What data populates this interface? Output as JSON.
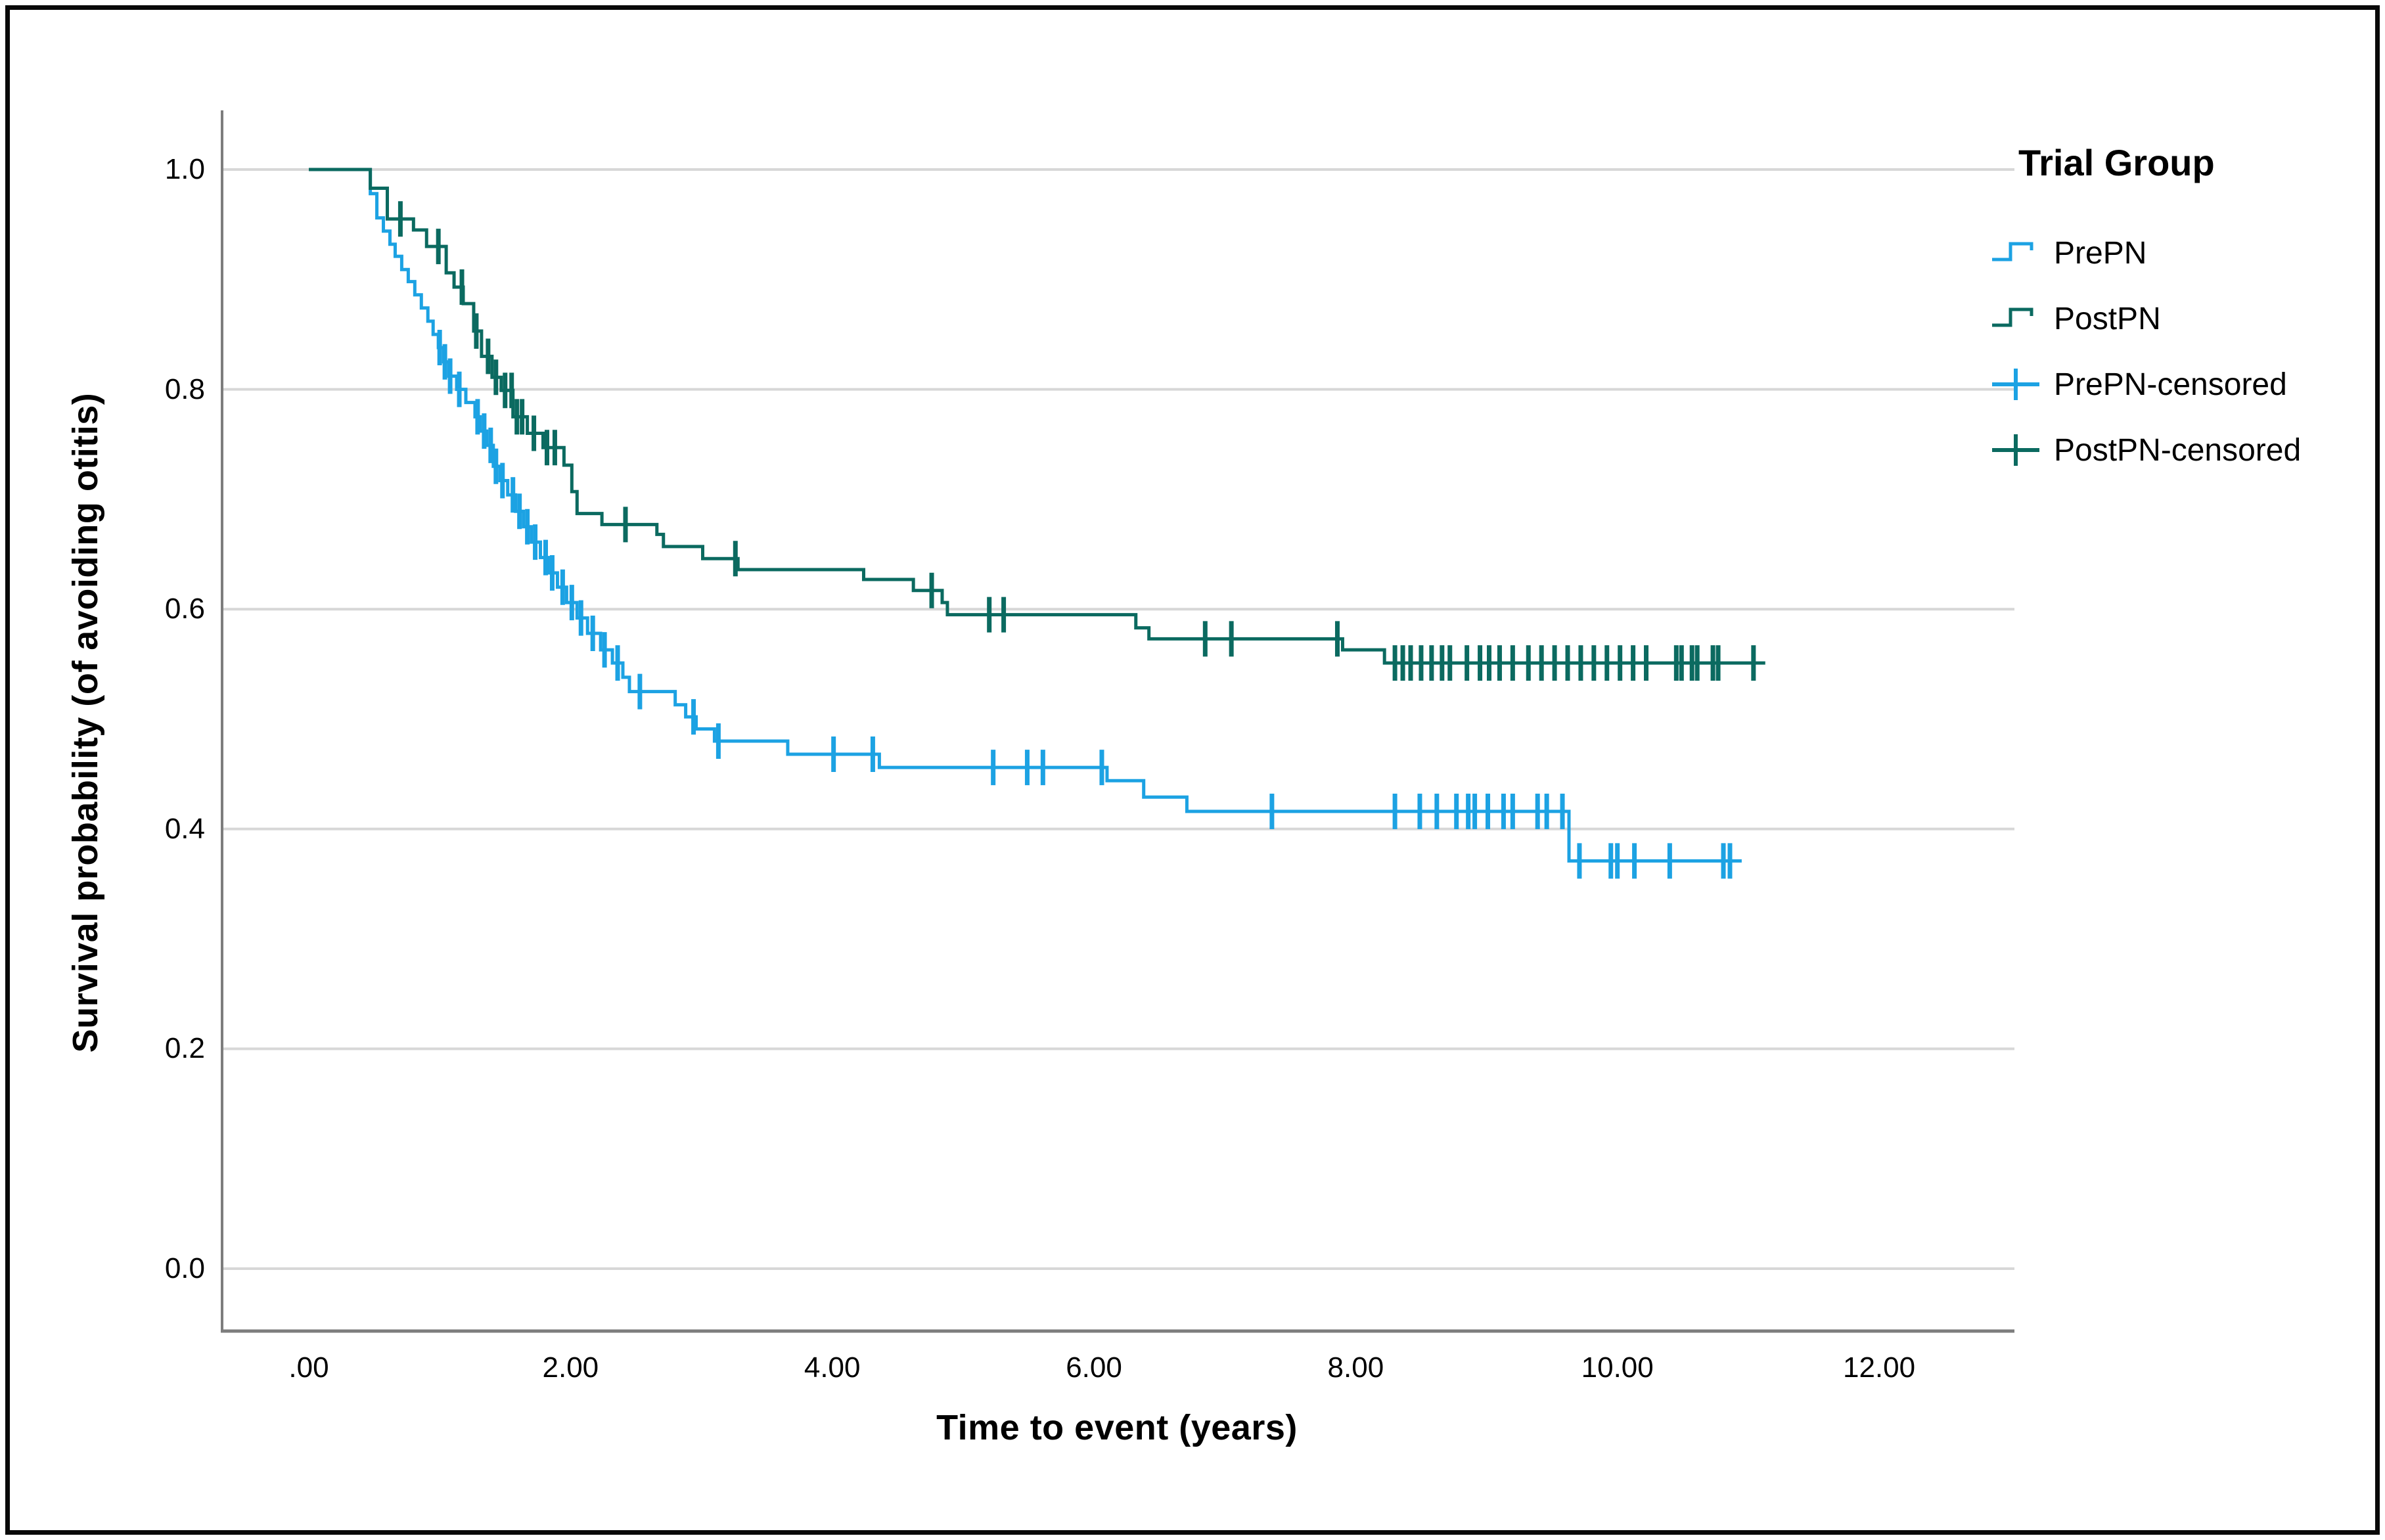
{
  "figure": {
    "background": "#ffffff",
    "border_color": "#0a0a0a"
  },
  "chart_data": {
    "type": "line",
    "subtype": "kaplan-meier-step",
    "title": "",
    "xlabel": "Time to event (years)",
    "ylabel": "Survival probability (of avoiding otitis)",
    "x_tick_labels": [
      ".00",
      "2.00",
      "4.00",
      "6.00",
      "8.00",
      "10.00",
      "12.00"
    ],
    "x_tick_values": [
      0,
      2,
      4,
      6,
      8,
      10,
      12
    ],
    "y_tick_labels": [
      "0.0",
      "0.2",
      "0.4",
      "0.6",
      "0.8",
      "1.0"
    ],
    "y_tick_values": [
      0.0,
      0.2,
      0.4,
      0.6,
      0.8,
      1.0
    ],
    "xlim": [
      -0.66,
      13.0
    ],
    "ylim": [
      -0.06,
      1.04
    ],
    "grid": "horizontal",
    "grid_color": "#d7d7d7",
    "axis_color": "#7d7d7d",
    "legend_position": "right",
    "legend": {
      "title": "Trial Group",
      "entries": [
        {
          "label": "PrePN",
          "series": "PrePN",
          "marker": "step-line"
        },
        {
          "label": "PostPN",
          "series": "PostPN",
          "marker": "step-line"
        },
        {
          "label": "PrePN-censored",
          "series": "PrePN",
          "marker": "censor-cross"
        },
        {
          "label": "PostPN-censored",
          "series": "PostPN",
          "marker": "censor-cross"
        }
      ]
    },
    "series": [
      {
        "name": "PrePN",
        "color": "#1ca2e3",
        "end_time": 10.95,
        "steps": [
          [
            0,
            1.0
          ],
          [
            0.47,
            0.978
          ],
          [
            0.52,
            0.956
          ],
          [
            0.57,
            0.944
          ],
          [
            0.62,
            0.932
          ],
          [
            0.66,
            0.921
          ],
          [
            0.71,
            0.909
          ],
          [
            0.76,
            0.898
          ],
          [
            0.81,
            0.886
          ],
          [
            0.86,
            0.874
          ],
          [
            0.91,
            0.862
          ],
          [
            0.95,
            0.85
          ],
          [
            0.99,
            0.838
          ],
          [
            1.03,
            0.825
          ],
          [
            1.07,
            0.812
          ],
          [
            1.13,
            0.8
          ],
          [
            1.2,
            0.788
          ],
          [
            1.27,
            0.775
          ],
          [
            1.31,
            0.762
          ],
          [
            1.36,
            0.749
          ],
          [
            1.41,
            0.73
          ],
          [
            1.46,
            0.717
          ],
          [
            1.52,
            0.704
          ],
          [
            1.58,
            0.689
          ],
          [
            1.64,
            0.675
          ],
          [
            1.7,
            0.661
          ],
          [
            1.77,
            0.647
          ],
          [
            1.83,
            0.633
          ],
          [
            1.9,
            0.62
          ],
          [
            1.97,
            0.606
          ],
          [
            2.05,
            0.592
          ],
          [
            2.13,
            0.578
          ],
          [
            2.23,
            0.563
          ],
          [
            2.32,
            0.551
          ],
          [
            2.4,
            0.538
          ],
          [
            2.45,
            0.525
          ],
          [
            2.8,
            0.513
          ],
          [
            2.88,
            0.502
          ],
          [
            2.96,
            0.491
          ],
          [
            3.1,
            0.48
          ],
          [
            3.66,
            0.468
          ],
          [
            4.36,
            0.456
          ],
          [
            6.1,
            0.444
          ],
          [
            6.38,
            0.429
          ],
          [
            6.71,
            0.416
          ],
          [
            9.63,
            0.371
          ]
        ],
        "censor_times": [
          1.0,
          1.04,
          1.08,
          1.15,
          1.29,
          1.34,
          1.39,
          1.43,
          1.48,
          1.56,
          1.61,
          1.67,
          1.73,
          1.81,
          1.86,
          1.94,
          2.01,
          2.08,
          2.17,
          2.26,
          2.36,
          2.53,
          2.94,
          3.13,
          4.01,
          4.31,
          5.23,
          5.49,
          5.61,
          6.06,
          7.36,
          8.3,
          8.49,
          8.62,
          8.77,
          8.86,
          8.91,
          9.01,
          9.13,
          9.2,
          9.39,
          9.46,
          9.58,
          9.71,
          9.95,
          10.0,
          10.13,
          10.4,
          10.81,
          10.86
        ]
      },
      {
        "name": "PostPN",
        "color": "#0b6a60",
        "end_time": 11.13,
        "steps": [
          [
            0,
            1.0
          ],
          [
            0.47,
            0.983
          ],
          [
            0.6,
            0.955
          ],
          [
            0.8,
            0.945
          ],
          [
            0.9,
            0.93
          ],
          [
            1.05,
            0.906
          ],
          [
            1.11,
            0.893
          ],
          [
            1.18,
            0.878
          ],
          [
            1.26,
            0.853
          ],
          [
            1.32,
            0.83
          ],
          [
            1.4,
            0.811
          ],
          [
            1.47,
            0.799
          ],
          [
            1.56,
            0.775
          ],
          [
            1.67,
            0.76
          ],
          [
            1.79,
            0.747
          ],
          [
            1.95,
            0.731
          ],
          [
            2.01,
            0.707
          ],
          [
            2.05,
            0.687
          ],
          [
            2.24,
            0.677
          ],
          [
            2.66,
            0.668
          ],
          [
            2.71,
            0.657
          ],
          [
            3.01,
            0.646
          ],
          [
            3.28,
            0.636
          ],
          [
            4.24,
            0.627
          ],
          [
            4.62,
            0.617
          ],
          [
            4.84,
            0.606
          ],
          [
            4.88,
            0.595
          ],
          [
            6.32,
            0.583
          ],
          [
            6.42,
            0.573
          ],
          [
            7.9,
            0.563
          ],
          [
            8.22,
            0.551
          ]
        ],
        "censor_times": [
          0.7,
          0.99,
          1.17,
          1.28,
          1.37,
          1.43,
          1.5,
          1.55,
          1.59,
          1.63,
          1.72,
          1.82,
          1.88,
          2.42,
          3.26,
          4.76,
          5.2,
          5.31,
          6.85,
          7.05,
          7.86,
          8.3,
          8.36,
          8.42,
          8.5,
          8.58,
          8.66,
          8.72,
          8.85,
          8.95,
          9.02,
          9.1,
          9.2,
          9.32,
          9.42,
          9.52,
          9.62,
          9.72,
          9.82,
          9.92,
          10.02,
          10.12,
          10.22,
          10.45,
          10.49,
          10.57,
          10.61,
          10.73,
          10.77,
          11.04
        ]
      }
    ]
  }
}
